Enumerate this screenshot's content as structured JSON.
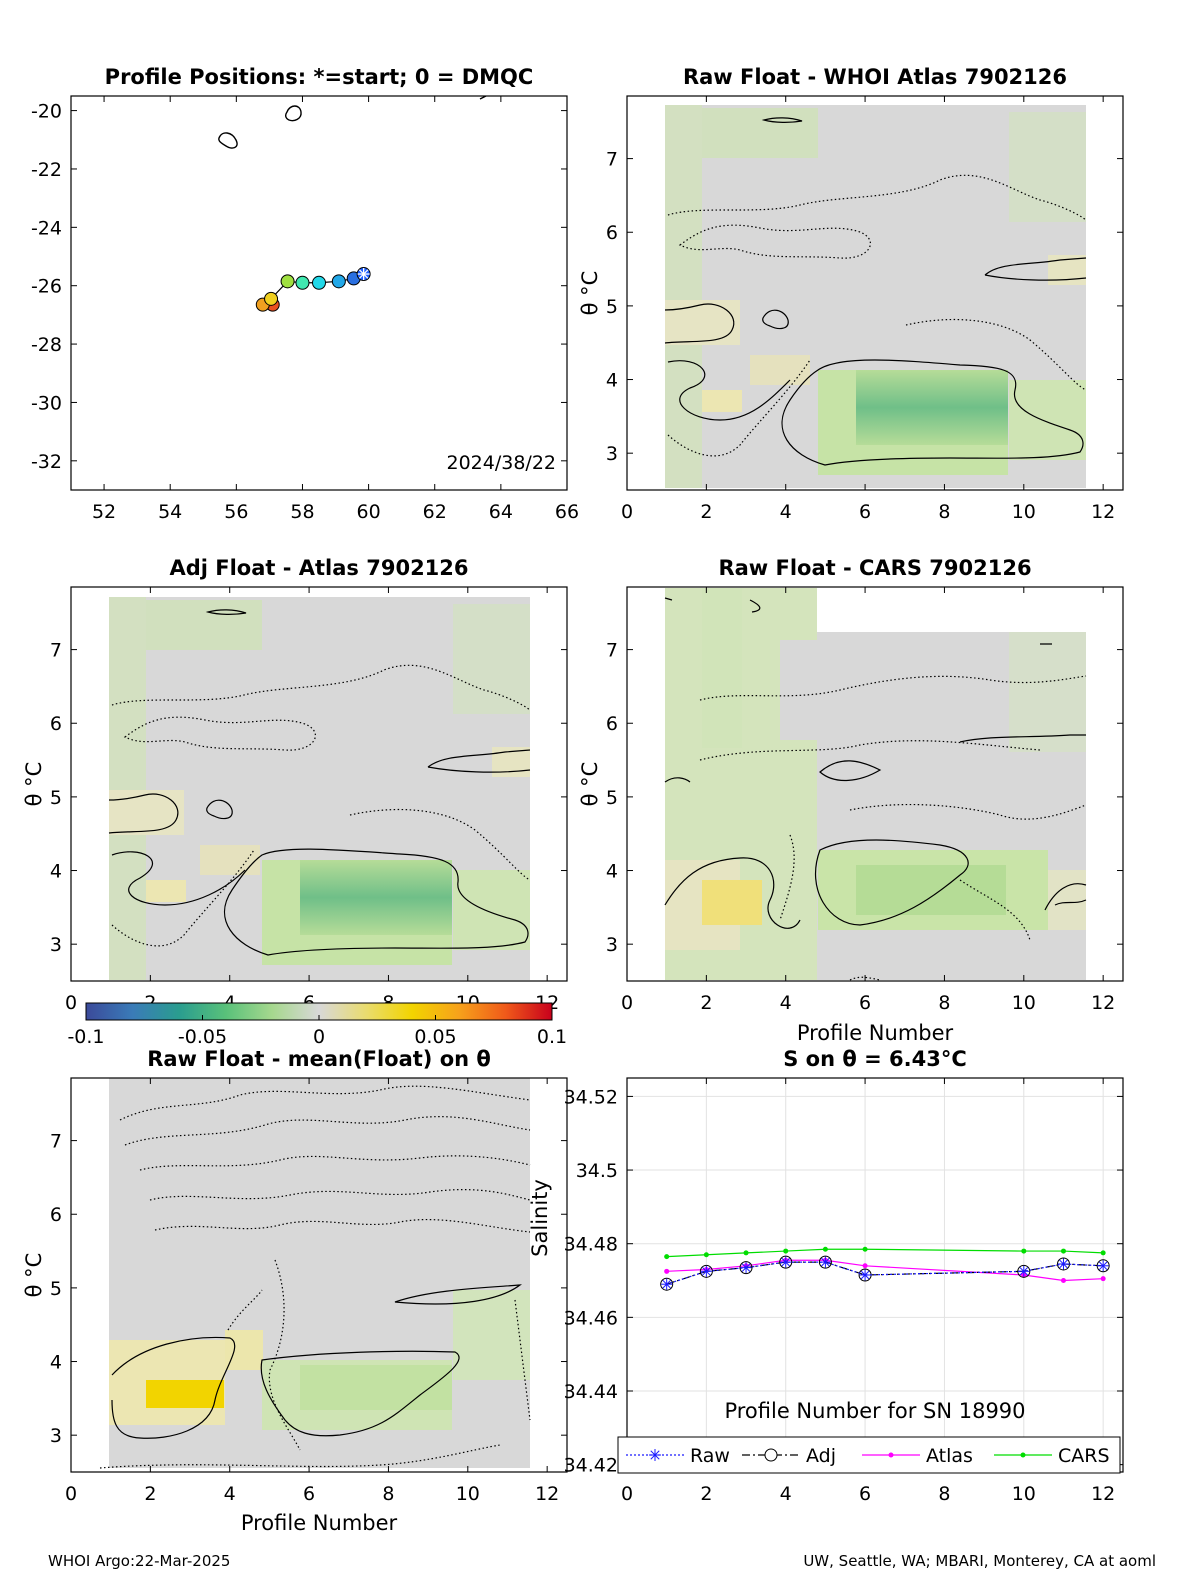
{
  "footer": {
    "left": "WHOI Argo:22-Mar-2025",
    "right": "UW, Seattle, WA; MBARI, Monterey, CA at aoml"
  },
  "colors": {
    "heat_gray": "#d8d8d8",
    "heat_green_light": "#d2e6b4",
    "heat_green_mid": "#a6d88e",
    "heat_green_dark": "#6fbf88",
    "heat_yellow_light": "#ece8b6",
    "heat_yellow_mid": "#f0de6a",
    "heat_yellow_strong": "#f2d400",
    "raw": "#1a1aff",
    "adj": "#000000",
    "atlas": "#ff00ff",
    "cars": "#00dd00"
  },
  "colorbar": {
    "ticks": [
      "-0.1",
      "-0.05",
      "0",
      "0.05",
      "0.1"
    ],
    "range": [
      -0.1,
      0.1
    ],
    "colormap_stops": [
      "#3b4a9a",
      "#3a7bb8",
      "#2a9d8f",
      "#59c17a",
      "#a6d88e",
      "#d8d8d8",
      "#e9dc70",
      "#f2d400",
      "#f7a21b",
      "#f05a1a",
      "#c8001c"
    ]
  },
  "chart_data": [
    {
      "id": "positions",
      "type": "scatter",
      "title": "Profile Positions: *=start; 0 = DMQC",
      "xlim": [
        51,
        66
      ],
      "ylim": [
        -33,
        -19.5
      ],
      "xticks": [
        "52",
        "54",
        "56",
        "58",
        "60",
        "62",
        "64",
        "66"
      ],
      "yticks": [
        "-20",
        "-22",
        "-24",
        "-26",
        "-28",
        "-30",
        "-32"
      ],
      "annotation": "2024/38/22",
      "points": [
        {
          "x": 59.85,
          "y": -25.6,
          "color": "#2060ff",
          "marker": "star"
        },
        {
          "x": 59.55,
          "y": -25.75,
          "color": "#2a6fe0"
        },
        {
          "x": 59.1,
          "y": -25.85,
          "color": "#22a8e8"
        },
        {
          "x": 58.5,
          "y": -25.9,
          "color": "#22d8e8"
        },
        {
          "x": 58.0,
          "y": -25.9,
          "color": "#40e8b0"
        },
        {
          "x": 57.55,
          "y": -25.85,
          "color": "#a0e040"
        },
        {
          "x": 57.05,
          "y": -26.45,
          "color": "#f0d020"
        },
        {
          "x": 56.8,
          "y": -26.65,
          "color": "#f0a020"
        },
        {
          "x": 57.1,
          "y": -26.65,
          "color": "#e85020"
        }
      ]
    },
    {
      "id": "raw-whoi",
      "type": "heatmap",
      "title": "Raw Float - WHOI Atlas  7902126",
      "ylabel": "θ °C",
      "xlim": [
        0,
        12.5
      ],
      "ylim": [
        2.5,
        7.85
      ],
      "xticks": [
        "0",
        "2",
        "4",
        "6",
        "8",
        "10",
        "12"
      ],
      "yticks": [
        "3",
        "4",
        "5",
        "6",
        "7"
      ]
    },
    {
      "id": "adj-atlas",
      "type": "heatmap",
      "title": "Adj Float - Atlas  7902126",
      "ylabel": "θ °C",
      "xlim": [
        0,
        12.5
      ],
      "ylim": [
        2.5,
        7.85
      ],
      "xticks": [
        "0",
        "2",
        "4",
        "6",
        "8",
        "10",
        "12"
      ],
      "yticks": [
        "3",
        "4",
        "5",
        "6",
        "7"
      ]
    },
    {
      "id": "raw-cars",
      "type": "heatmap",
      "title": "Raw Float - CARS  7902126",
      "ylabel": "θ °C",
      "xlabel": "Profile Number",
      "xlim": [
        0,
        12.5
      ],
      "ylim": [
        2.5,
        7.85
      ],
      "xticks": [
        "0",
        "2",
        "4",
        "6",
        "8",
        "10",
        "12"
      ],
      "yticks": [
        "3",
        "4",
        "5",
        "6",
        "7"
      ]
    },
    {
      "id": "raw-mean",
      "type": "heatmap",
      "title": "Raw Float - mean(Float) on θ",
      "ylabel": "θ °C",
      "xlabel": "Profile Number",
      "xlim": [
        0,
        12.5
      ],
      "ylim": [
        2.5,
        7.85
      ],
      "xticks": [
        "0",
        "2",
        "4",
        "6",
        "8",
        "10",
        "12"
      ],
      "yticks": [
        "3",
        "4",
        "5",
        "6",
        "7"
      ]
    },
    {
      "id": "salinity",
      "type": "line",
      "title": "S on θ = 6.43°C",
      "xlabel": "Profile Number for SN 18990",
      "ylabel": "Salinity",
      "xlim": [
        0,
        12.5
      ],
      "ylim": [
        34.418,
        34.525
      ],
      "xticks": [
        "0",
        "2",
        "4",
        "6",
        "8",
        "10",
        "12"
      ],
      "yticks": [
        "34.52",
        "34.5",
        "34.48",
        "34.46",
        "34.44",
        "34.42"
      ],
      "x": [
        1,
        2,
        3,
        4,
        5,
        6,
        10,
        11,
        12
      ],
      "series": [
        {
          "name": "Raw",
          "values": [
            34.469,
            34.4725,
            34.4735,
            34.475,
            34.475,
            34.4715,
            34.4725,
            34.4745,
            34.474
          ]
        },
        {
          "name": "Adj",
          "values": [
            34.469,
            34.4725,
            34.4735,
            34.475,
            34.475,
            34.4715,
            34.4725,
            34.4745,
            34.474
          ]
        },
        {
          "name": "Atlas",
          "values": [
            34.4725,
            34.473,
            34.474,
            34.4755,
            34.4755,
            34.474,
            34.4715,
            34.47,
            34.4705
          ]
        },
        {
          "name": "CARS",
          "values": [
            34.4765,
            34.477,
            34.4775,
            34.478,
            34.4785,
            34.4785,
            34.478,
            34.478,
            34.4775
          ]
        }
      ]
    }
  ]
}
